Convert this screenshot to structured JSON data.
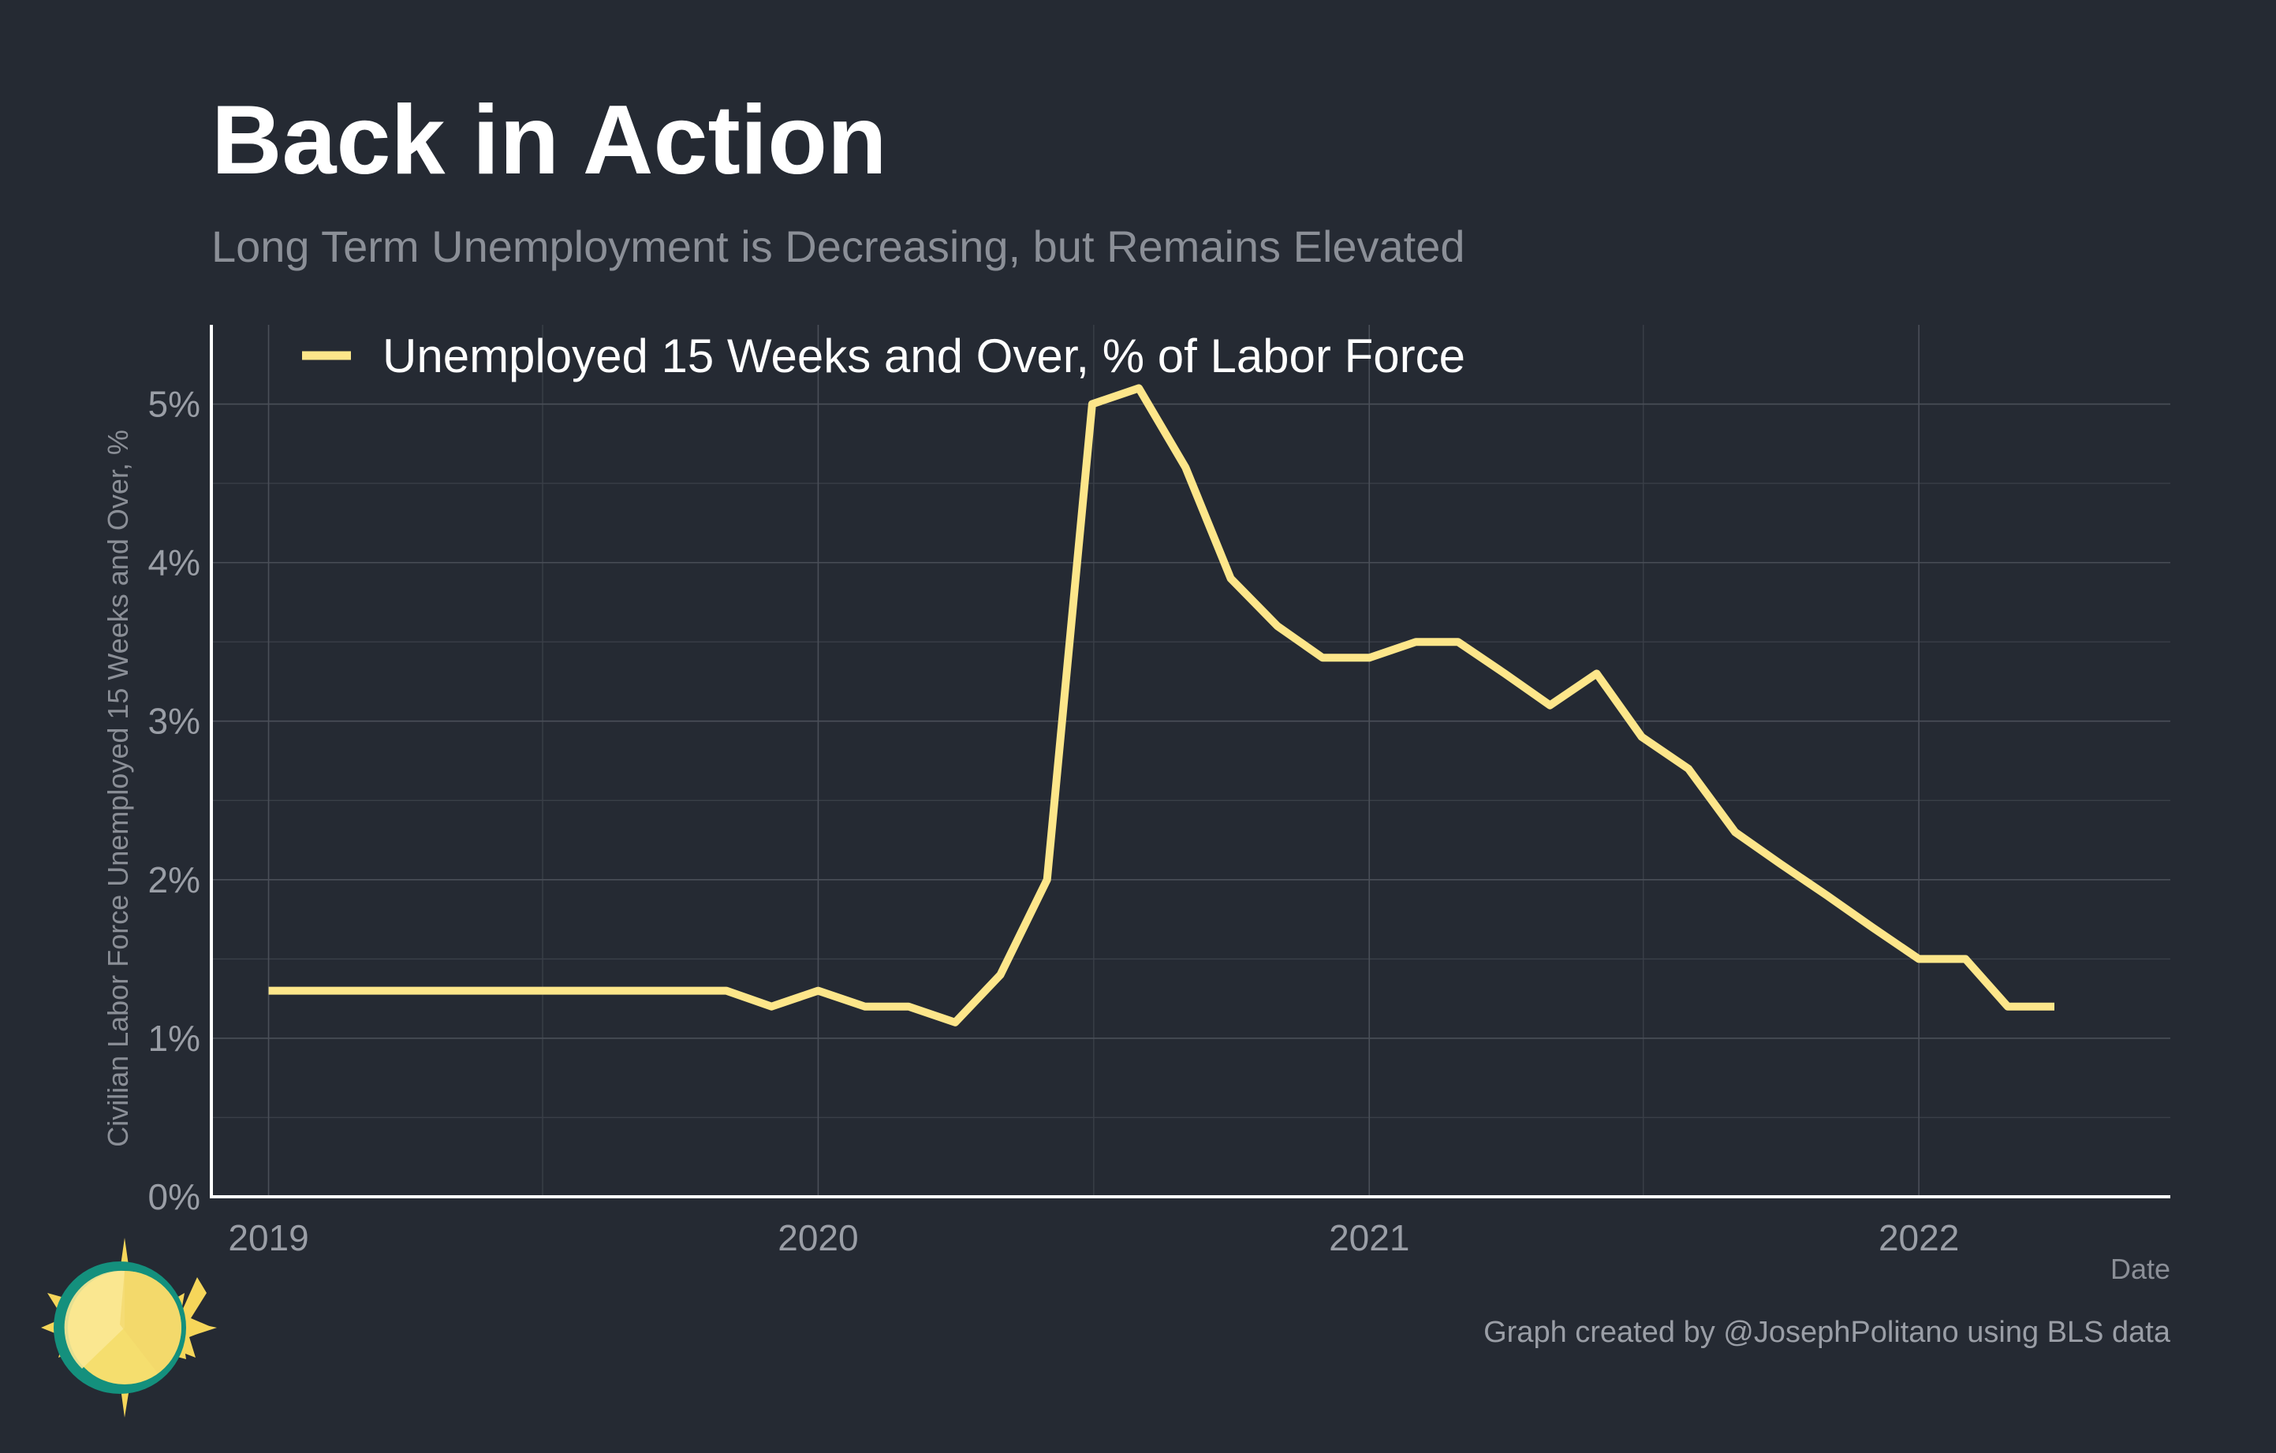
{
  "title": "Back in Action",
  "subtitle": "Long Term Unemployment is Decreasing, but Remains Elevated",
  "caption": "Graph created by @JosephPolitano using BLS data",
  "colors": {
    "background": "#252a33",
    "line": "#fde68a",
    "axis": "#ffffff",
    "text_muted": "#9a9ea6"
  },
  "logo": {
    "icon": "sun-logo-icon"
  },
  "chart_data": {
    "type": "line",
    "xlabel": "Date",
    "ylabel": "Civilian Labor Force Unemployed 15 Weeks and Over, %",
    "x_ticks": [
      "2019",
      "2020",
      "2021",
      "2022"
    ],
    "y_ticks": [
      "0%",
      "1%",
      "2%",
      "3%",
      "4%",
      "5%"
    ],
    "ylim": [
      0,
      5.5
    ],
    "xlim": [
      "2018-11-24",
      "2022-06-17"
    ],
    "grid": true,
    "legend_position": "top-left",
    "series": [
      {
        "name": "Unemployed 15 Weeks and Over, % of Labor Force",
        "color": "#fde68a",
        "x": [
          "2019-01",
          "2019-02",
          "2019-03",
          "2019-04",
          "2019-05",
          "2019-06",
          "2019-07",
          "2019-08",
          "2019-09",
          "2019-10",
          "2019-11",
          "2019-12",
          "2020-01",
          "2020-02",
          "2020-03",
          "2020-04",
          "2020-05",
          "2020-06",
          "2020-07",
          "2020-08",
          "2020-09",
          "2020-10",
          "2020-11",
          "2020-12",
          "2021-01",
          "2021-02",
          "2021-03",
          "2021-04",
          "2021-05",
          "2021-06",
          "2021-07",
          "2021-08",
          "2021-09",
          "2021-10",
          "2021-11",
          "2021-12",
          "2022-01",
          "2022-02",
          "2022-03",
          "2022-04"
        ],
        "values": [
          1.3,
          1.3,
          1.3,
          1.3,
          1.3,
          1.3,
          1.3,
          1.3,
          1.3,
          1.3,
          1.3,
          1.2,
          1.3,
          1.2,
          1.2,
          1.1,
          1.4,
          2.0,
          5.0,
          5.1,
          4.6,
          3.9,
          3.6,
          3.4,
          3.4,
          3.5,
          3.5,
          3.3,
          3.1,
          3.3,
          2.9,
          2.7,
          2.3,
          2.1,
          1.9,
          1.7,
          1.5,
          1.5,
          1.2,
          1.2
        ]
      }
    ]
  }
}
